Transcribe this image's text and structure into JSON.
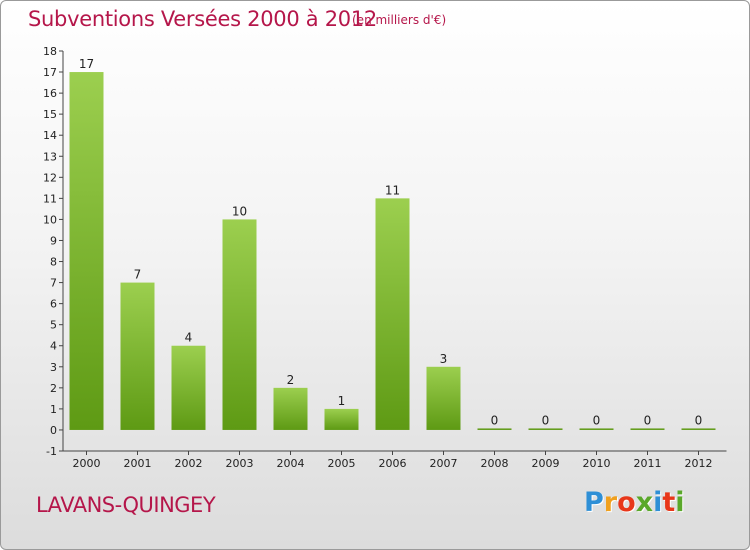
{
  "header": {
    "title": "Subventions Versées 2000 à 2012",
    "subtitle": "(en milliers d'€)"
  },
  "footer": {
    "commune": "LAVANS-QUINGEY",
    "brand": "Proxiti"
  },
  "colors": {
    "accent": "#b5164a",
    "bar_top": "#9ccf4f",
    "bar_bottom": "#5e9a14",
    "brand_letters": [
      "#2e8fd6",
      "#f0a01e",
      "#e8371a",
      "#5aa82a",
      "#2e8fd6",
      "#e8371a",
      "#5aa82a"
    ]
  },
  "chart_data": {
    "type": "bar",
    "title": "Subventions Versées 2000 à 2012",
    "subtitle": "(en milliers d'€)",
    "categories": [
      "2000",
      "2001",
      "2002",
      "2003",
      "2004",
      "2005",
      "2006",
      "2007",
      "2008",
      "2009",
      "2010",
      "2011",
      "2012"
    ],
    "values": [
      17,
      7,
      4,
      10,
      2,
      1,
      11,
      3,
      0,
      0,
      0,
      0,
      0
    ],
    "data_labels": [
      "17",
      "7",
      "4",
      "10",
      "2",
      "1",
      "11",
      "3",
      "0",
      "0",
      "0",
      "0",
      "0"
    ],
    "y_ticks": [
      "-1",
      "0",
      "1",
      "2",
      "3",
      "4",
      "5",
      "6",
      "7",
      "8",
      "9",
      "10",
      "11",
      "12",
      "13",
      "14",
      "15",
      "16",
      "17",
      "18"
    ],
    "ylim": [
      -1,
      18
    ],
    "xlabel": "",
    "ylabel": "",
    "grid": false,
    "legend": "none"
  }
}
